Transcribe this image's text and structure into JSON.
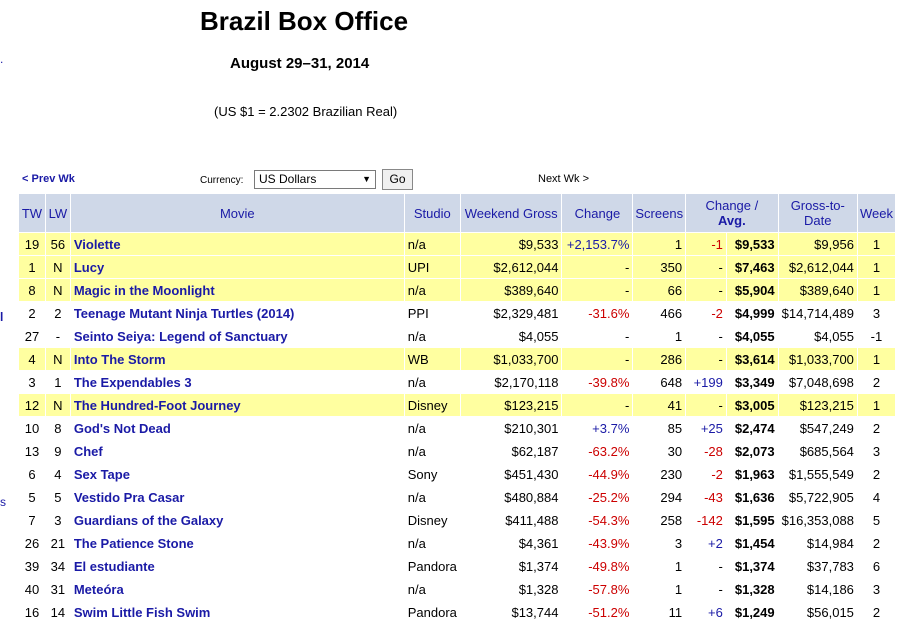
{
  "page": {
    "title": "Brazil Box Office",
    "dates": "August 29–31, 2014",
    "exchange_rate": "(US $1 = 2.2302 Brazilian Real)"
  },
  "nav": {
    "prev_week": "< Prev Wk",
    "next_week": "Next Wk >",
    "currency_label": "Currency:",
    "currency_value": "US Dollars",
    "go_button": "Go"
  },
  "edge_marks": [
    ".",
    "l",
    "s"
  ],
  "table": {
    "headers": [
      "TW",
      "LW",
      "Movie",
      "Studio",
      "Weekend Gross",
      "Change",
      "Screens",
      "Change /",
      "Avg.",
      "Gross-to-Date",
      "Week"
    ],
    "rows": [
      {
        "tw": "19",
        "lw": "56",
        "movie": "Violette",
        "studio": "n/a",
        "gross": "$9,533",
        "change": "+2,153.7%",
        "screens": "1",
        "scr_change": "-1",
        "avg": "$9,533",
        "to_date": "$9,956",
        "week": "1",
        "hl": true
      },
      {
        "tw": "1",
        "lw": "N",
        "movie": "Lucy",
        "studio": "UPI",
        "gross": "$2,612,044",
        "change": "-",
        "screens": "350",
        "scr_change": "-",
        "avg": "$7,463",
        "to_date": "$2,612,044",
        "week": "1",
        "hl": true
      },
      {
        "tw": "8",
        "lw": "N",
        "movie": "Magic in the Moonlight",
        "studio": "n/a",
        "gross": "$389,640",
        "change": "-",
        "screens": "66",
        "scr_change": "-",
        "avg": "$5,904",
        "to_date": "$389,640",
        "week": "1",
        "hl": true
      },
      {
        "tw": "2",
        "lw": "2",
        "movie": "Teenage Mutant Ninja Turtles (2014)",
        "studio": "PPI",
        "gross": "$2,329,481",
        "change": "-31.6%",
        "screens": "466",
        "scr_change": "-2",
        "avg": "$4,999",
        "to_date": "$14,714,489",
        "week": "3",
        "hl": false
      },
      {
        "tw": "27",
        "lw": "-",
        "movie": "Seinto Seiya: Legend of Sanctuary",
        "studio": "n/a",
        "gross": "$4,055",
        "change": "-",
        "screens": "1",
        "scr_change": "-",
        "avg": "$4,055",
        "to_date": "$4,055",
        "week": "-1",
        "hl": false
      },
      {
        "tw": "4",
        "lw": "N",
        "movie": "Into The Storm",
        "studio": "WB",
        "gross": "$1,033,700",
        "change": "-",
        "screens": "286",
        "scr_change": "-",
        "avg": "$3,614",
        "to_date": "$1,033,700",
        "week": "1",
        "hl": true
      },
      {
        "tw": "3",
        "lw": "1",
        "movie": "The Expendables 3",
        "studio": "n/a",
        "gross": "$2,170,118",
        "change": "-39.8%",
        "screens": "648",
        "scr_change": "+199",
        "avg": "$3,349",
        "to_date": "$7,048,698",
        "week": "2",
        "hl": false
      },
      {
        "tw": "12",
        "lw": "N",
        "movie": "The Hundred-Foot Journey",
        "studio": "Disney",
        "gross": "$123,215",
        "change": "-",
        "screens": "41",
        "scr_change": "-",
        "avg": "$3,005",
        "to_date": "$123,215",
        "week": "1",
        "hl": true
      },
      {
        "tw": "10",
        "lw": "8",
        "movie": "God's Not Dead",
        "studio": "n/a",
        "gross": "$210,301",
        "change": "+3.7%",
        "screens": "85",
        "scr_change": "+25",
        "avg": "$2,474",
        "to_date": "$547,249",
        "week": "2",
        "hl": false
      },
      {
        "tw": "13",
        "lw": "9",
        "movie": "Chef",
        "studio": "n/a",
        "gross": "$62,187",
        "change": "-63.2%",
        "screens": "30",
        "scr_change": "-28",
        "avg": "$2,073",
        "to_date": "$685,564",
        "week": "3",
        "hl": false
      },
      {
        "tw": "6",
        "lw": "4",
        "movie": "Sex Tape",
        "studio": "Sony",
        "gross": "$451,430",
        "change": "-44.9%",
        "screens": "230",
        "scr_change": "-2",
        "avg": "$1,963",
        "to_date": "$1,555,549",
        "week": "2",
        "hl": false
      },
      {
        "tw": "5",
        "lw": "5",
        "movie": "Vestido Pra Casar",
        "studio": "n/a",
        "gross": "$480,884",
        "change": "-25.2%",
        "screens": "294",
        "scr_change": "-43",
        "avg": "$1,636",
        "to_date": "$5,722,905",
        "week": "4",
        "hl": false
      },
      {
        "tw": "7",
        "lw": "3",
        "movie": "Guardians of the Galaxy",
        "studio": "Disney",
        "gross": "$411,488",
        "change": "-54.3%",
        "screens": "258",
        "scr_change": "-142",
        "avg": "$1,595",
        "to_date": "$16,353,088",
        "week": "5",
        "hl": false
      },
      {
        "tw": "26",
        "lw": "21",
        "movie": "The Patience Stone",
        "studio": "n/a",
        "gross": "$4,361",
        "change": "-43.9%",
        "screens": "3",
        "scr_change": "+2",
        "avg": "$1,454",
        "to_date": "$14,984",
        "week": "2",
        "hl": false
      },
      {
        "tw": "39",
        "lw": "34",
        "movie": "El estudiante",
        "studio": "Pandora",
        "gross": "$1,374",
        "change": "-49.8%",
        "screens": "1",
        "scr_change": "-",
        "avg": "$1,374",
        "to_date": "$37,783",
        "week": "6",
        "hl": false
      },
      {
        "tw": "40",
        "lw": "31",
        "movie": "Meteóra",
        "studio": "n/a",
        "gross": "$1,328",
        "change": "-57.8%",
        "screens": "1",
        "scr_change": "-",
        "avg": "$1,328",
        "to_date": "$14,186",
        "week": "3",
        "hl": false
      },
      {
        "tw": "16",
        "lw": "14",
        "movie": "Swim Little Fish Swim",
        "studio": "Pandora",
        "gross": "$13,744",
        "change": "-51.2%",
        "screens": "11",
        "scr_change": "+6",
        "avg": "$1,249",
        "to_date": "$56,015",
        "week": "2",
        "hl": false
      }
    ]
  },
  "colors": {
    "header_bg": "#cfd8e8",
    "highlight_row": "#ffffa0",
    "link": "#1a1aa6",
    "negative": "#cc0000"
  }
}
